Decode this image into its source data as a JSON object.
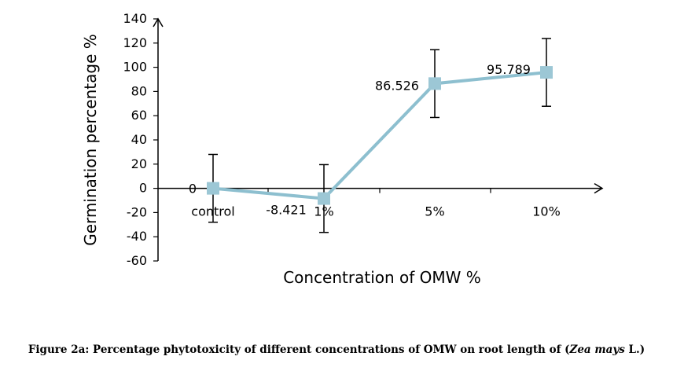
{
  "chart_data": {
    "type": "line",
    "categories": [
      "control",
      "1%",
      "5%",
      "10%"
    ],
    "values": [
      0,
      -8.421,
      86.526,
      95.789
    ],
    "data_labels": [
      "0",
      "-8.421",
      "86.526",
      "95.789"
    ],
    "error_bars": [
      28,
      28,
      28,
      28
    ],
    "xlabel": "Concentration of OMW %",
    "ylabel": "Germination percentage %",
    "ylim": [
      -60,
      140
    ],
    "yticks": [
      -60,
      -40,
      -20,
      0,
      20,
      40,
      60,
      80,
      100,
      120,
      140
    ],
    "grid": false,
    "legend": "none",
    "colors": {
      "line": "#8DBFCF",
      "marker": "#9CC7D5",
      "axis": "#000000",
      "error_bar": "#000000"
    }
  },
  "caption": {
    "prefix": "Figure 2a: Percentage phytotoxicity of different concentrations of OMW on root length of (",
    "italic": "Zea mays",
    "suffix": " L.)"
  }
}
